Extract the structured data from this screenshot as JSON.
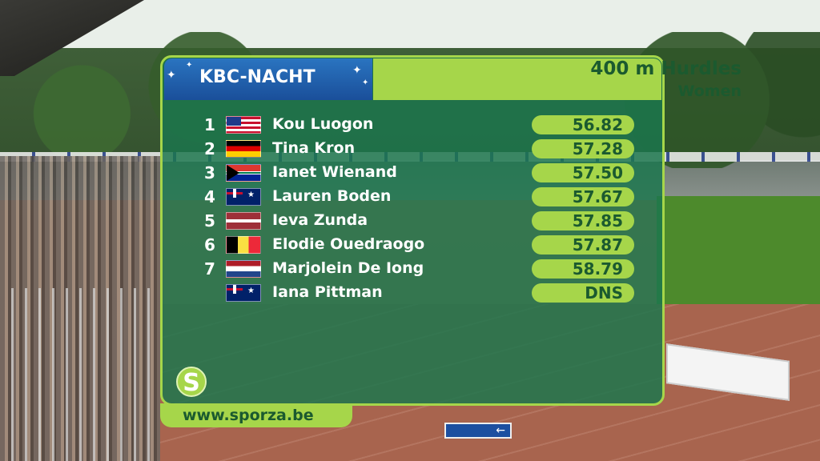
{
  "header": {
    "logo_text": "KBC-NACHT",
    "event_title": "400 m Hurdles",
    "event_subtitle": "Women"
  },
  "results": [
    {
      "rank": "1",
      "flag": "usa",
      "name": "Kou Luogon",
      "time": "56.82"
    },
    {
      "rank": "2",
      "flag": "ger",
      "name": "Tina Kron",
      "time": "57.28"
    },
    {
      "rank": "3",
      "flag": "rsa",
      "name": "Ianet Wienand",
      "time": "57.50"
    },
    {
      "rank": "4",
      "flag": "aus",
      "name": "Lauren Boden",
      "time": "57.67"
    },
    {
      "rank": "5",
      "flag": "lat",
      "name": "Ieva Zunda",
      "time": "57.85"
    },
    {
      "rank": "6",
      "flag": "bel",
      "name": "Elodie Ouedraogo",
      "time": "57.87"
    },
    {
      "rank": "7",
      "flag": "ned",
      "name": "Marjolein De Iong",
      "time": "58.79"
    },
    {
      "rank": "",
      "flag": "aus",
      "name": "Iana Pittman",
      "time": "DNS"
    }
  ],
  "footer": {
    "logo_letter": "S",
    "url": "www.sporza.be"
  },
  "colors": {
    "panel": "#1c764e",
    "accent": "#a6d64a",
    "header_blue": "#1a4f9a"
  }
}
